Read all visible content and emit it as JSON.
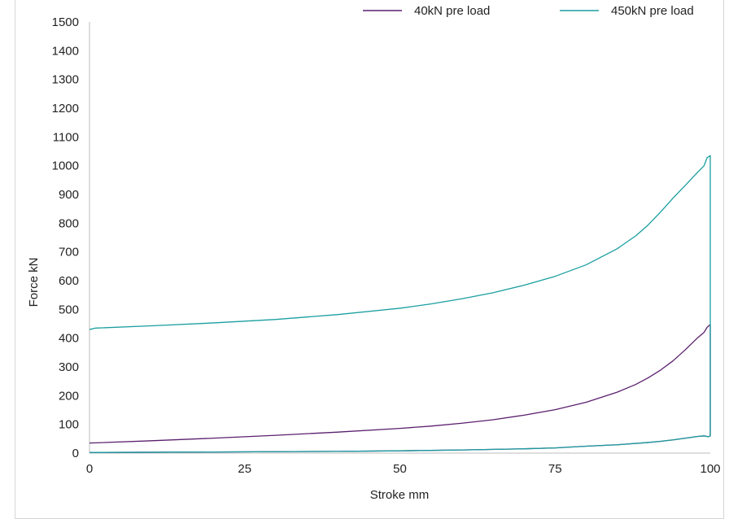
{
  "chart_data": {
    "type": "line",
    "title": "",
    "xlabel": "Stroke mm",
    "ylabel": "Force kN",
    "xlim": [
      0,
      100
    ],
    "ylim": [
      0,
      1500
    ],
    "xticks": [
      "0",
      "25",
      "50",
      "75",
      "100"
    ],
    "yticks": [
      "0",
      "100",
      "200",
      "300",
      "400",
      "500",
      "600",
      "700",
      "800",
      "900",
      "1000",
      "1100",
      "1200",
      "1300",
      "1400",
      "1500"
    ],
    "grid": false,
    "legend_position": "top-right",
    "series": [
      {
        "name": "40kN pre load",
        "color": "#5b1f6e",
        "points": [
          [
            0,
            35
          ],
          [
            10,
            43
          ],
          [
            20,
            52
          ],
          [
            30,
            62
          ],
          [
            40,
            73
          ],
          [
            50,
            86
          ],
          [
            55,
            94
          ],
          [
            60,
            104
          ],
          [
            65,
            116
          ],
          [
            70,
            132
          ],
          [
            75,
            151
          ],
          [
            80,
            177
          ],
          [
            85,
            212
          ],
          [
            88,
            239
          ],
          [
            90,
            262
          ],
          [
            92,
            289
          ],
          [
            94,
            321
          ],
          [
            96,
            360
          ],
          [
            98,
            402
          ],
          [
            99,
            420
          ],
          [
            99.5,
            438
          ],
          [
            100,
            447
          ],
          [
            100,
            60
          ],
          [
            99.7,
            57
          ],
          [
            99,
            60
          ],
          [
            98,
            58
          ],
          [
            96,
            52
          ],
          [
            94,
            46
          ],
          [
            92,
            41
          ],
          [
            90,
            37
          ],
          [
            85,
            29
          ],
          [
            80,
            24
          ],
          [
            75,
            18
          ],
          [
            70,
            15
          ],
          [
            60,
            11
          ],
          [
            50,
            8
          ],
          [
            40,
            6
          ],
          [
            30,
            5
          ],
          [
            20,
            4
          ],
          [
            10,
            3
          ],
          [
            0,
            2
          ]
        ]
      },
      {
        "name": "450kN pre load",
        "color": "#1a9ea0",
        "points": [
          [
            0,
            430
          ],
          [
            1,
            435
          ],
          [
            10,
            443
          ],
          [
            20,
            453
          ],
          [
            30,
            465
          ],
          [
            40,
            482
          ],
          [
            50,
            504
          ],
          [
            55,
            519
          ],
          [
            60,
            537
          ],
          [
            65,
            558
          ],
          [
            70,
            584
          ],
          [
            75,
            615
          ],
          [
            80,
            655
          ],
          [
            85,
            711
          ],
          [
            88,
            756
          ],
          [
            90,
            794
          ],
          [
            92,
            839
          ],
          [
            94,
            887
          ],
          [
            96,
            932
          ],
          [
            98,
            978
          ],
          [
            99,
            1000
          ],
          [
            99.5,
            1028
          ],
          [
            100,
            1035
          ],
          [
            100,
            60
          ],
          [
            99.7,
            57
          ],
          [
            99,
            60
          ],
          [
            98,
            58
          ],
          [
            96,
            52
          ],
          [
            94,
            46
          ],
          [
            92,
            41
          ],
          [
            90,
            37
          ],
          [
            85,
            29
          ],
          [
            80,
            24
          ],
          [
            75,
            18
          ],
          [
            70,
            15
          ],
          [
            60,
            11
          ],
          [
            50,
            8
          ],
          [
            40,
            6
          ],
          [
            30,
            5
          ],
          [
            20,
            4
          ],
          [
            10,
            3
          ],
          [
            0,
            2
          ]
        ]
      }
    ]
  }
}
